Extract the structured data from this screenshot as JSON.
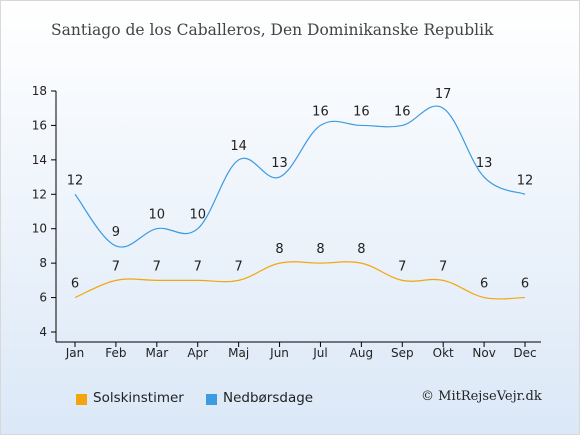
{
  "title": "Santiago de los Caballeros, Den Dominikanske Republik",
  "credit": "© MitRejseVejr.dk",
  "colors": {
    "sun": "#f5a50c",
    "rain": "#3d9be0",
    "axis": "#000000",
    "label": "#222222"
  },
  "chart_data": {
    "type": "line",
    "title": "Santiago de los Caballeros, Den Dominikanske Republik",
    "xlabel": "",
    "ylabel": "",
    "categories": [
      "Jan",
      "Feb",
      "Mar",
      "Apr",
      "Maj",
      "Jun",
      "Jul",
      "Aug",
      "Sep",
      "Okt",
      "Nov",
      "Dec"
    ],
    "ylim": [
      4,
      18
    ],
    "yticks": [
      "4",
      "6",
      "8",
      "10",
      "12",
      "14",
      "16",
      "18"
    ],
    "grid": false,
    "legend_position": "bottom",
    "series": [
      {
        "name": "Solskinstimer",
        "color": "#f5a50c",
        "values": [
          6,
          7,
          7,
          7,
          7,
          8,
          8,
          8,
          7,
          7,
          6,
          6
        ]
      },
      {
        "name": "Nedbørsdage",
        "color": "#3d9be0",
        "values": [
          12,
          9,
          10,
          10,
          14,
          13,
          16,
          16,
          16,
          17,
          13,
          12
        ]
      }
    ]
  }
}
